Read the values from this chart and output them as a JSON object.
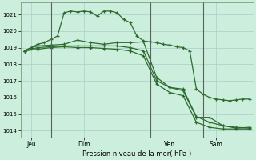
{
  "background_color": "#cceedd",
  "grid_color": "#aacccc",
  "line_color": "#2d6b2d",
  "title": "Pression niveau de la mer( hPa )",
  "ylabel_values": [
    1014,
    1015,
    1016,
    1017,
    1018,
    1019,
    1020,
    1021
  ],
  "ylim": [
    1013.6,
    1021.7
  ],
  "xlim": [
    -0.3,
    17.3
  ],
  "day_labels": [
    "Jeu",
    "Dim",
    "Ven",
    "Sam"
  ],
  "day_positions": [
    0.5,
    4.5,
    11.0,
    14.5
  ],
  "vline_positions": [
    2.0,
    9.5,
    13.5
  ],
  "series1_x": [
    0,
    0.5,
    1,
    1.5,
    2,
    2.5,
    3,
    3.5,
    4,
    4.5,
    5,
    5.5,
    6,
    6.5,
    7,
    7.5,
    8,
    8.5,
    9,
    9.5,
    10,
    10.5,
    11,
    11.5,
    12,
    12.5,
    13,
    13.5,
    14,
    14.5,
    15,
    15.5,
    16,
    16.5,
    17
  ],
  "series1_y": [
    1018.8,
    1019.0,
    1019.2,
    1019.3,
    1019.5,
    1019.7,
    1021.1,
    1021.2,
    1021.15,
    1021.2,
    1021.15,
    1020.9,
    1021.2,
    1021.2,
    1021.1,
    1020.7,
    1020.5,
    1019.7,
    1019.4,
    1019.35,
    1019.3,
    1019.2,
    1019.15,
    1019.05,
    1019.0,
    1018.8,
    1016.5,
    1016.2,
    1016.0,
    1015.9,
    1015.85,
    1015.8,
    1015.85,
    1015.9,
    1015.9
  ],
  "series2_x": [
    0,
    0.5,
    1,
    2,
    3,
    4,
    5,
    6,
    7,
    8,
    9,
    10,
    11,
    12,
    13,
    14,
    15,
    16,
    17
  ],
  "series2_y": [
    1018.8,
    1019.0,
    1019.1,
    1019.15,
    1019.2,
    1019.45,
    1019.3,
    1019.2,
    1019.3,
    1019.3,
    1019.35,
    1017.2,
    1016.6,
    1016.4,
    1014.8,
    1014.8,
    1014.3,
    1014.2,
    1014.15
  ],
  "series3_x": [
    0,
    1,
    2,
    3,
    4,
    5,
    6,
    7,
    8,
    9,
    10,
    11,
    12,
    13,
    14,
    15,
    16,
    17
  ],
  "series3_y": [
    1018.8,
    1019.0,
    1019.05,
    1019.1,
    1019.1,
    1019.1,
    1019.1,
    1019.1,
    1019.0,
    1018.8,
    1017.0,
    1016.6,
    1016.5,
    1014.85,
    1014.5,
    1014.3,
    1014.15,
    1014.2
  ],
  "series4_x": [
    0,
    1,
    2,
    3,
    4,
    5,
    6,
    7,
    8,
    9,
    10,
    11,
    12,
    13,
    14,
    15,
    16,
    17
  ],
  "series4_y": [
    1018.8,
    1018.9,
    1019.0,
    1019.05,
    1019.0,
    1019.0,
    1018.95,
    1018.9,
    1018.8,
    1018.5,
    1016.8,
    1016.3,
    1016.1,
    1014.5,
    1014.2,
    1014.1,
    1014.1,
    1014.1
  ]
}
